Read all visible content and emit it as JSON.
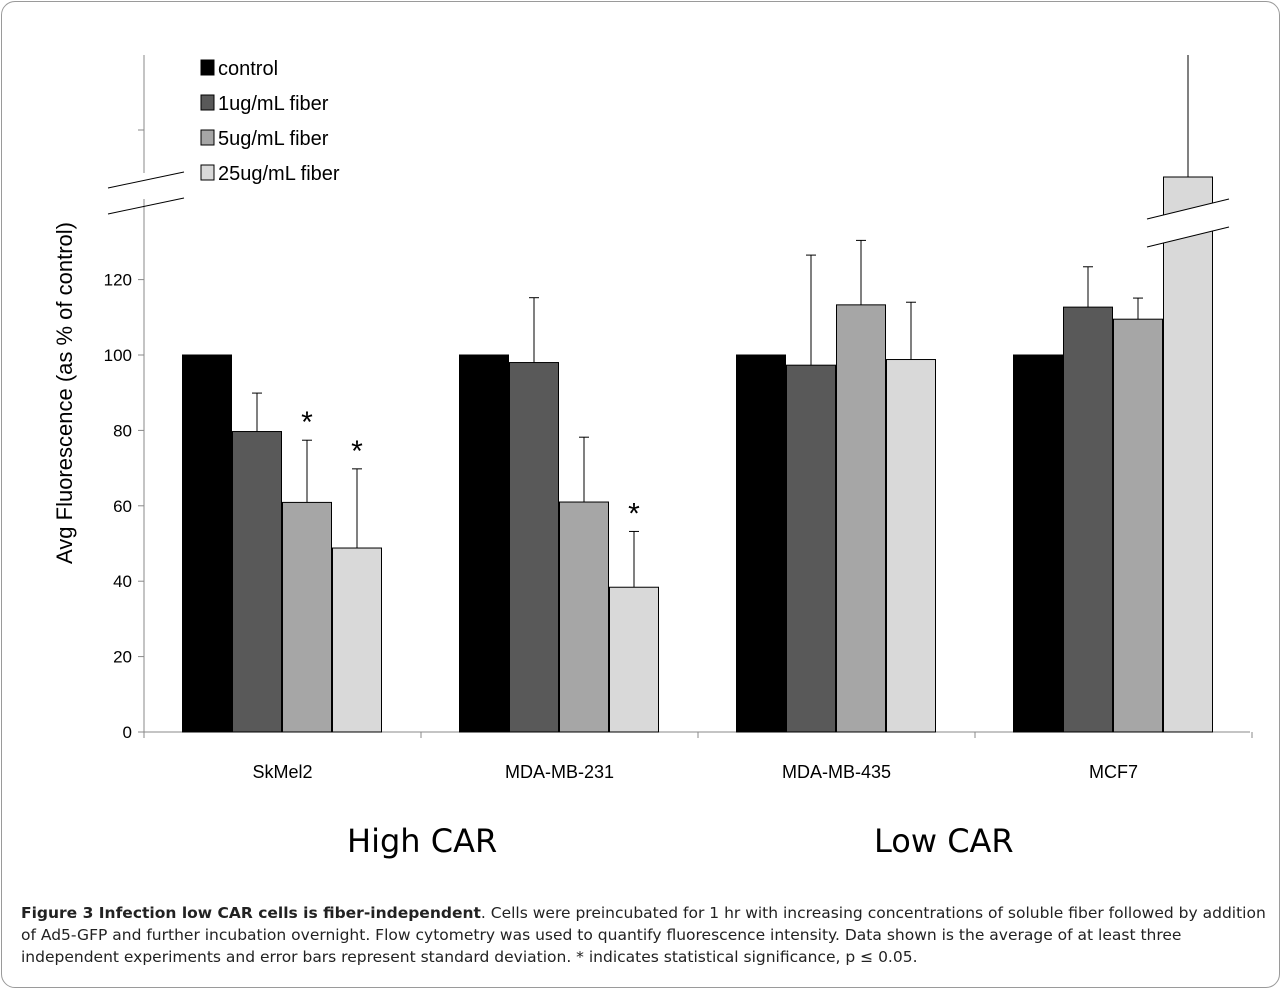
{
  "chart_data": {
    "type": "bar",
    "ylabel": "Avg Fluorescence (as % of control)",
    "ylim": [
      0,
      140
    ],
    "yticks": [
      "0",
      "20",
      "40",
      "60",
      "80",
      "100",
      "120"
    ],
    "axis_break": true,
    "categories": [
      "SkMel2",
      "MDA-MB-231",
      "MDA-MB-435",
      "MCF7"
    ],
    "series": [
      {
        "name": "control",
        "color": "#000000",
        "values": [
          100,
          100,
          100,
          100
        ],
        "errors": [
          0,
          0,
          0,
          0
        ]
      },
      {
        "name": "1ug/mL fiber",
        "color": "#595959",
        "values": [
          79.7,
          98,
          97.3,
          112.7
        ],
        "errors": [
          10.2,
          17.2,
          29.2,
          10.7
        ]
      },
      {
        "name": "5ug/mL fiber",
        "color": "#a6a6a6",
        "values": [
          60.9,
          61,
          113.3,
          109.5
        ],
        "errors": [
          16.5,
          17.2,
          17.1,
          5.6
        ]
      },
      {
        "name": "25ug/mL fiber",
        "color": "#d9d9d9",
        "values": [
          48.8,
          38.4,
          98.8,
          null
        ],
        "errors": [
          21,
          14.8,
          15.2,
          null
        ]
      }
    ],
    "broken_bar": {
      "category": "MCF7",
      "series": "25ug/mL fiber",
      "note": "value exceeds broken axis"
    },
    "significance": [
      {
        "category": "SkMel2",
        "series": "5ug/mL fiber",
        "mark": "*"
      },
      {
        "category": "SkMel2",
        "series": "25ug/mL fiber",
        "mark": "*"
      },
      {
        "category": "MDA-MB-231",
        "series": "25ug/mL fiber",
        "mark": "*"
      }
    ],
    "legend_position": "top-left",
    "group_labels": [
      "High CAR",
      "Low CAR"
    ]
  },
  "caption": {
    "title": "Figure 3 Infection low CAR cells is fiber-independent",
    "text": ". Cells were preincubated for 1 hr with increasing concentrations of soluble fiber followed by addition of Ad5-GFP and further incubation overnight. Flow cytometry was used to quantify fluorescence intensity. Data shown is the average of at least three independent experiments and error bars represent standard deviation. * indicates statistical significance, p ≤ 0.05."
  }
}
